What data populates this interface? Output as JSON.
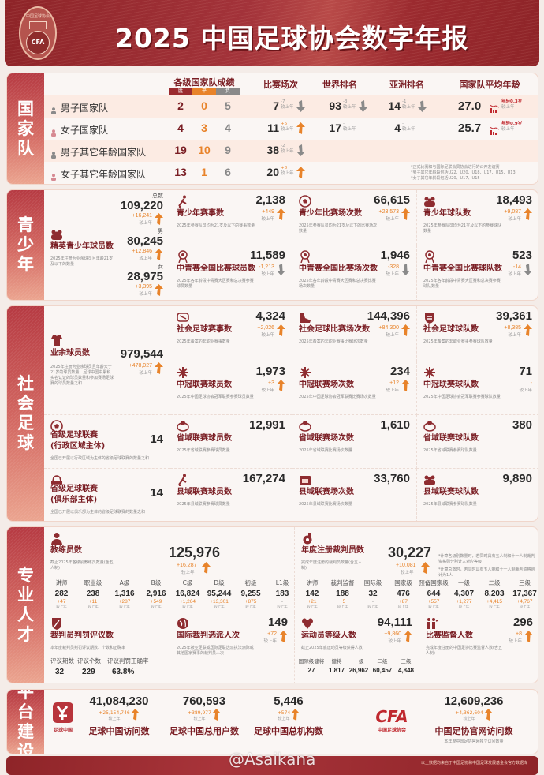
{
  "header": {
    "title": "2025 中国足球协会数字年报",
    "logo_text": "中国足球协会",
    "logo_abbr": "CFA"
  },
  "colors": {
    "primary": "#8e2428",
    "title": "#7a1e24",
    "increase": "#e8832a",
    "decrease": "#8a8a8a"
  },
  "national_team": {
    "label": "国家队",
    "headers": {
      "results": "各级国家队成绩",
      "win": "胜",
      "draw": "平",
      "loss": "负",
      "matches": "比赛场次",
      "world_rank": "世界排名",
      "asia_rank": "亚洲排名",
      "avg_age": "国家队平均年龄"
    },
    "rows": [
      {
        "name": "男子国家队",
        "icon": "male-person-icon",
        "win": "2",
        "draw": "0",
        "loss": "5",
        "matches": {
          "value": "7",
          "delta": "-7",
          "cmp": "较上年",
          "trend": "down"
        },
        "world": {
          "value": "93",
          "delta": "-3",
          "cmp": "较上年",
          "trend": "down"
        },
        "asia": {
          "value": "14",
          "delta": "-1",
          "cmp": "较上年",
          "trend": "down"
        },
        "age": {
          "value": "27.0",
          "delta": "年轻0.3岁",
          "cmp": "较上年"
        }
      },
      {
        "name": "女子国家队",
        "icon": "female-person-icon",
        "win": "4",
        "draw": "3",
        "loss": "4",
        "matches": {
          "value": "11",
          "delta": "+6",
          "cmp": "较上年",
          "trend": "up"
        },
        "world": {
          "value": "17",
          "delta": "-",
          "cmp": "较上年",
          "trend": "none"
        },
        "asia": {
          "value": "4",
          "delta": "-",
          "cmp": "较上年",
          "trend": "none"
        },
        "age": {
          "value": "25.7",
          "delta": "年轻0.9岁",
          "cmp": "较上年"
        }
      },
      {
        "name": "男子其它年龄国家队",
        "icon": "male-person-icon",
        "win": "19",
        "draw": "10",
        "loss": "9",
        "matches": {
          "value": "38",
          "delta": "-2",
          "cmp": "较上年",
          "trend": "down"
        }
      },
      {
        "name": "女子其它年龄国家队",
        "icon": "female-person-icon",
        "win": "13",
        "draw": "1",
        "loss": "6",
        "matches": {
          "value": "20",
          "delta": "+8",
          "cmp": "较上年",
          "trend": "up"
        }
      }
    ],
    "notes": [
      "*正式比赛和与国际足联会员协会进行的公开友谊赛",
      "*男子其它年龄段包括U22、U20、U18、U17、U15、U13",
      "*女子其它年龄段包括U20、U17、U15"
    ]
  },
  "youth": {
    "label": "青少年",
    "elite": {
      "title": "精英青少年球员数",
      "desc": "2025年注册为业余球员且年龄21岁及以下的数量",
      "groups": [
        {
          "label": "总数",
          "value": "109,220",
          "delta": "+16,241",
          "cmp": "较上年"
        },
        {
          "label": "男",
          "value": "80,245",
          "delta": "+12,846",
          "cmp": "较上年"
        },
        {
          "label": "女",
          "value": "28,975",
          "delta": "+3,395",
          "cmp": "较上年"
        }
      ]
    },
    "cards": [
      {
        "icon": "player-kick-icon",
        "title": "青少年赛事数",
        "desc": "2025年参赛队员均为21岁及以下的赛事数量",
        "value": "2,138",
        "delta": "+449",
        "cmp": "较上年",
        "trend": "up"
      },
      {
        "icon": "soccer-ball-icon",
        "title": "青少年比赛场次数",
        "desc": "2025年参赛队员均为21岁及以下的比赛场次数量",
        "value": "66,615",
        "delta": "+23,573",
        "cmp": "较上年",
        "trend": "up"
      },
      {
        "icon": "team-icon",
        "title": "青少年球队数",
        "desc": "2025年参赛队员均为21岁及以下的参赛球队数量",
        "value": "18,493",
        "delta": "+9,087",
        "cmp": "较上年",
        "trend": "up"
      },
      {
        "icon": "medal-icon",
        "title": "中青赛全国比赛球员数",
        "desc": "2025年各年龄段中青赛大区赛和总决赛参赛球员数量",
        "value": "11,589",
        "delta": "-1,213",
        "cmp": "较上年",
        "trend": "down"
      },
      {
        "icon": "medal-icon",
        "title": "中青赛全国比赛场次数",
        "desc": "2025年各年龄段中青赛大区赛和总决赛比赛场次数量",
        "value": "1,946",
        "delta": "-328",
        "cmp": "较上年",
        "trend": "down"
      },
      {
        "icon": "medal-icon",
        "title": "中青赛全国比赛球队数",
        "desc": "2025年各年龄段中青赛大区赛和总决赛参赛球队数量",
        "value": "523",
        "delta": "-14",
        "cmp": "较上年",
        "trend": "down"
      }
    ]
  },
  "social": {
    "label": "社会足球",
    "amateur": {
      "icon": "jersey-icon",
      "title": "业余球员数",
      "desc": "2025年注册为业余球员且年龄大于21岁的球员数量、足球中国中累积实名认证的球员数量和参加赛场足球赛的球员数量之和",
      "value": "979,544",
      "delta": "+478,027",
      "cmp": "较上年",
      "trend": "up"
    },
    "cards": [
      {
        "icon": "trophy-icon",
        "title": "社会足球赛事数",
        "desc": "2025年备案的非职业赛事数量",
        "value": "4,324",
        "delta": "+2,026",
        "cmp": "较上年",
        "trend": "up"
      },
      {
        "icon": "boot-icon",
        "title": "社会足球比赛场次数",
        "desc": "2025年备案的非职业赛事比赛场次数量",
        "value": "144,396",
        "delta": "+84,300",
        "cmp": "较上年",
        "trend": "up"
      },
      {
        "icon": "shield-icon",
        "title": "社会足球球队数",
        "desc": "2025年备案的非职业赛事参赛球队数量",
        "value": "39,361",
        "delta": "+8,385",
        "cmp": "较上年",
        "trend": "up"
      },
      {
        "icon": "snowflake-emblem-icon",
        "title": "中冠联赛球员数",
        "desc": "2025年中国足球协会冠军联赛参赛球员数量",
        "value": "1,973",
        "delta": "+3",
        "cmp": "较上年",
        "trend": "up"
      },
      {
        "icon": "snowflake-emblem-icon",
        "title": "中冠联赛场次数",
        "desc": "2025年中国足球协会冠军联赛比赛场次数量",
        "value": "234",
        "delta": "+12",
        "cmp": "较上年",
        "trend": "up"
      },
      {
        "icon": "snowflake-emblem-icon",
        "title": "中冠联赛球队数",
        "desc": "2025年中国足球协会冠军联赛参赛球队数量",
        "value": "71",
        "delta": "-",
        "cmp": "较上年",
        "trend": "none"
      },
      {
        "icon": "league-badge-icon",
        "title": "省域联赛球员数",
        "desc": "2025年省域联赛参赛球员数量",
        "value": "12,991"
      },
      {
        "icon": "league-badge-icon",
        "title": "省域联赛场次数",
        "desc": "2025年省域联赛比赛场次数量",
        "value": "1,610"
      },
      {
        "icon": "league-badge-icon",
        "title": "省域联赛球队数",
        "desc": "2025年省域联赛参赛球队数量",
        "value": "380"
      },
      {
        "icon": "player-kick-icon",
        "title": "县域联赛球员数",
        "desc": "2025年县域联赛参赛球员数量",
        "value": "167,274"
      },
      {
        "icon": "calendar-icon",
        "title": "县域联赛场次数",
        "desc": "2025年县域联赛比赛场次数量",
        "value": "33,760"
      },
      {
        "icon": "team-icon",
        "title": "县域联赛球队数",
        "desc": "2025年县域联赛参赛球队数量",
        "value": "9,890"
      }
    ],
    "provincial": [
      {
        "icon": "soccer-ball-icon",
        "title": "省级足球联赛",
        "title2": "(行政区域主体)",
        "desc": "全国已开展以行政区域为主体的省级足球联赛的数量之和",
        "value": "14"
      },
      {
        "icon": "stadium-icon",
        "title": "省级足球联赛",
        "title2": "(俱乐部主体)",
        "desc": "全国已开展以俱乐部为主体的省级足球联赛的数量之和",
        "value": "14"
      }
    ]
  },
  "talent": {
    "label": "专业人才",
    "coach": {
      "title": "教练员数",
      "desc": "截止2025年各级别教练员数量(含五人制)",
      "value": "125,976",
      "delta": "+16,287",
      "cmp": "较上年",
      "levels": [
        {
          "label": "讲师",
          "value": "282",
          "delta": "+47",
          "cmp": "较上年"
        },
        {
          "label": "职业级",
          "value": "238",
          "delta": "+11",
          "cmp": "较上年"
        },
        {
          "label": "A级",
          "value": "1,316",
          "delta": "+287",
          "cmp": "较上年"
        },
        {
          "label": "B级",
          "value": "2,916",
          "delta": "+549",
          "cmp": "较上年"
        },
        {
          "label": "C级",
          "value": "16,824",
          "delta": "+1,264",
          "cmp": "较上年"
        },
        {
          "label": "D级",
          "value": "95,244",
          "delta": "+13,301",
          "cmp": "较上年"
        },
        {
          "label": "初级",
          "value": "9,255",
          "delta": "+875",
          "cmp": "较上年"
        },
        {
          "label": "L1级",
          "value": "183",
          "delta": "-",
          "cmp": "较上年"
        }
      ]
    },
    "referee": {
      "title": "年度注册裁判员数",
      "desc": "完成年度注册的裁判员数量(含五人制)",
      "value": "30,227",
      "delta": "+10,081",
      "cmp": "较上年",
      "notes": [
        "*计算各级别数量时，若同时具有五人制和十一人制裁判资格则分别计入对应等级",
        "*计算总数时，若同时具有五人制和十一人制裁判资格则计为1人"
      ],
      "levels": [
        {
          "label": "讲师",
          "value": "142",
          "delta": "+21",
          "cmp": "较上年"
        },
        {
          "label": "裁判监督",
          "value": "188",
          "delta": "+5",
          "cmp": "较上年"
        },
        {
          "label": "国际级",
          "value": "32",
          "delta": "-",
          "cmp": "较上年"
        },
        {
          "label": "国家级",
          "value": "476",
          "delta": "+87",
          "cmp": "较上年"
        },
        {
          "label": "预备国家级",
          "value": "644",
          "delta": "+557",
          "cmp": "较上年"
        },
        {
          "label": "一级",
          "value": "4,307",
          "delta": "+1,277",
          "cmp": "较上年"
        },
        {
          "label": "二级",
          "value": "8,203",
          "delta": "+4,415",
          "cmp": "较上年"
        },
        {
          "label": "三级",
          "value": "17,367",
          "delta": "+4,767",
          "cmp": "较上年"
        }
      ]
    },
    "review": {
      "title": "裁判员判罚评议数",
      "desc": "本年度裁判员判罚评议期数、个数和正确率",
      "items": [
        {
          "label": "评议期数",
          "value": "32"
        },
        {
          "label": "评议个数",
          "value": "229"
        },
        {
          "label": "评议判罚正确率",
          "value": "63.8%"
        }
      ]
    },
    "intl_ref": {
      "title": "国际裁判选派人次",
      "desc": "2025年被亚足联或国际足联选派执法洲际或其他国家赛事的裁判员人次",
      "value": "149",
      "delta": "+72",
      "cmp": "较上年",
      "trend": "up"
    },
    "athlete": {
      "title": "运动员等级人数",
      "desc": "截止2025年底运动员等级获得人数",
      "value": "94,111",
      "delta": "+9,860",
      "cmp": "较上年",
      "items": [
        {
          "label": "国际级健将",
          "value": "27"
        },
        {
          "label": "健将",
          "value": "1,817"
        },
        {
          "label": "一级",
          "value": "26,962"
        },
        {
          "label": "二级",
          "value": "60,457"
        },
        {
          "label": "三级",
          "value": "4,848"
        }
      ]
    },
    "supervisor": {
      "title": "比赛监督人数",
      "desc": "完成年度注册的中国足协比赛监督人数(含五人制)",
      "value": "296",
      "delta": "+8",
      "cmp": "较上年",
      "trend": "up"
    }
  },
  "platform": {
    "label": "平台建设",
    "app_logo": "足球中国",
    "cfa_logo": {
      "abbr": "CFA",
      "name": "中国足球协会"
    },
    "stats": [
      {
        "value": "41,084,230",
        "delta": "+25,154,746",
        "cmp": "较上年",
        "title": "足球中国访问数"
      },
      {
        "value": "760,593",
        "delta": "+389,977",
        "cmp": "较上年",
        "title": "足球中国总用户数"
      },
      {
        "value": "5,446",
        "delta": "+574",
        "cmp": "较上年",
        "title": "足球中国总机构数"
      },
      {
        "value": "12,609,236",
        "delta": "+4,362,604",
        "cmp": "较上年",
        "title": "中国足协官网访问数",
        "desc": "本年度中国足协官网独立访问数量"
      }
    ]
  },
  "footer": {
    "source": "以上数据均来自于中国足协和中国足球发展基金会官方数据库",
    "watermark": "@Asaikana"
  }
}
